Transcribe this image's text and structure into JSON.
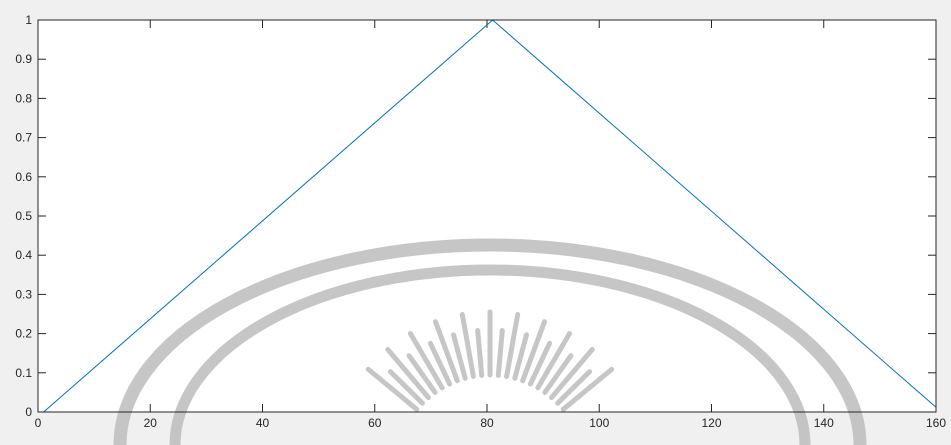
{
  "chart_data": {
    "type": "line",
    "title": "",
    "xlabel": "",
    "ylabel": "",
    "xlim": [
      0,
      160
    ],
    "ylim": [
      0,
      1
    ],
    "xticks": [
      0,
      20,
      40,
      60,
      80,
      100,
      120,
      140,
      160
    ],
    "yticks": [
      0,
      0.1,
      0.2,
      0.3,
      0.4,
      0.5,
      0.6,
      0.7,
      0.8,
      0.9,
      1
    ],
    "grid": false,
    "legend": "none",
    "series": [
      {
        "color": "#0072bd",
        "x": [
          1,
          81,
          160
        ],
        "y": [
          0,
          1,
          0.012
        ]
      }
    ]
  },
  "colors": {
    "background": "#f0f0f0",
    "axes": "#ffffff",
    "watermark": "#bdbdbd"
  },
  "watermark": {
    "icon": "university-seal-watermark"
  }
}
